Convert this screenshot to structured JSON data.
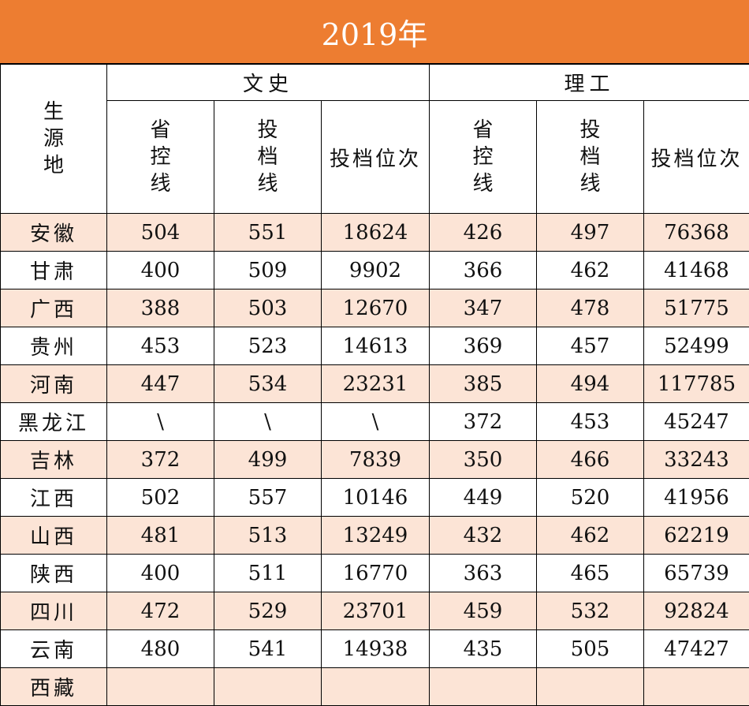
{
  "title": "2019年",
  "header": {
    "origin": "生源地",
    "group_wen": "文史",
    "group_li": "理工",
    "cols": [
      "省控线",
      "投档线",
      "投档位次",
      "省控线",
      "投档线",
      "投档位次"
    ]
  },
  "rows": [
    {
      "region": "安徽",
      "vals": [
        "504",
        "551",
        "18624",
        "426",
        "497",
        "76368"
      ]
    },
    {
      "region": "甘肃",
      "vals": [
        "400",
        "509",
        "9902",
        "366",
        "462",
        "41468"
      ]
    },
    {
      "region": "广西",
      "vals": [
        "388",
        "503",
        "12670",
        "347",
        "478",
        "51775"
      ]
    },
    {
      "region": "贵州",
      "vals": [
        "453",
        "523",
        "14613",
        "369",
        "457",
        "52499"
      ]
    },
    {
      "region": "河南",
      "vals": [
        "447",
        "534",
        "23231",
        "385",
        "494",
        "117785"
      ]
    },
    {
      "region": "黑龙江",
      "vals": [
        "\\",
        "\\",
        "\\",
        "372",
        "453",
        "45247"
      ]
    },
    {
      "region": "吉林",
      "vals": [
        "372",
        "499",
        "7839",
        "350",
        "466",
        "33243"
      ]
    },
    {
      "region": "江西",
      "vals": [
        "502",
        "557",
        "10146",
        "449",
        "520",
        "41956"
      ]
    },
    {
      "region": "山西",
      "vals": [
        "481",
        "513",
        "13249",
        "432",
        "462",
        "62219"
      ]
    },
    {
      "region": "陕西",
      "vals": [
        "400",
        "511",
        "16770",
        "363",
        "465",
        "65739"
      ]
    },
    {
      "region": "四川",
      "vals": [
        "472",
        "529",
        "23701",
        "459",
        "532",
        "92824"
      ]
    },
    {
      "region": "云南",
      "vals": [
        "480",
        "541",
        "14938",
        "435",
        "505",
        "47427"
      ]
    },
    {
      "region": "西藏",
      "vals": [
        "",
        "",
        "",
        "",
        "",
        ""
      ]
    }
  ]
}
